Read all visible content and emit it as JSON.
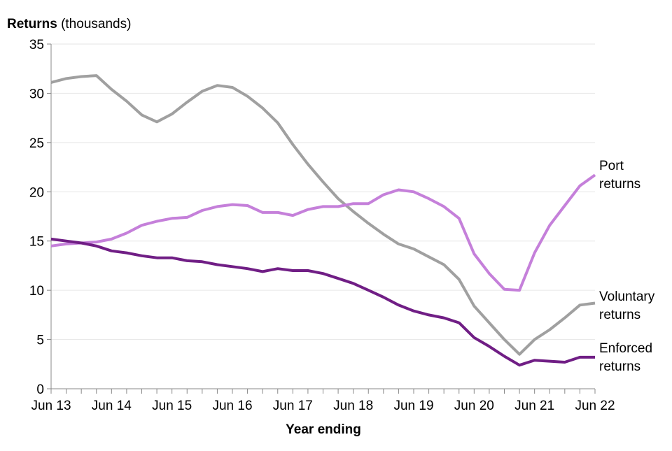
{
  "chart_data": {
    "type": "line",
    "title_bold": "Returns",
    "title_rest": " (thousands)",
    "xlabel": "Year ending",
    "ylabel": "Returns (thousands)",
    "ylim": [
      0,
      35
    ],
    "yticks": [
      0,
      5,
      10,
      15,
      20,
      25,
      30,
      35
    ],
    "xtick_labels": [
      "Jun 13",
      "Jun 14",
      "Jun 15",
      "Jun 16",
      "Jun 17",
      "Jun 18",
      "Jun 19",
      "Jun 20",
      "Jun 21",
      "Jun 22"
    ],
    "grid": true,
    "legend": "inline-right",
    "frequency": "quarterly",
    "series": [
      {
        "name": "Voluntary returns",
        "label_lines": [
          "Voluntary",
          "returns"
        ],
        "color": "#a0a0a0",
        "values": [
          31.1,
          31.5,
          31.7,
          31.8,
          30.4,
          29.2,
          27.8,
          27.1,
          27.9,
          29.1,
          30.2,
          30.8,
          30.6,
          29.7,
          28.5,
          27.0,
          24.8,
          22.8,
          21.0,
          19.3,
          18.0,
          16.8,
          15.7,
          14.7,
          14.2,
          13.4,
          12.6,
          11.1,
          8.4,
          6.7,
          5.0,
          3.5,
          5.0,
          6.0,
          7.2,
          8.5,
          8.7
        ]
      },
      {
        "name": "Port returns",
        "label_lines": [
          "Port",
          "returns"
        ],
        "color": "#c580da",
        "values": [
          14.5,
          14.7,
          14.8,
          14.9,
          15.2,
          15.8,
          16.6,
          17.0,
          17.3,
          17.4,
          18.1,
          18.5,
          18.7,
          18.6,
          17.9,
          17.9,
          17.6,
          18.2,
          18.5,
          18.5,
          18.8,
          18.8,
          19.7,
          20.2,
          20.0,
          19.3,
          18.5,
          17.3,
          13.7,
          11.7,
          10.1,
          10.0,
          13.8,
          16.6,
          18.6,
          20.6,
          21.7
        ]
      },
      {
        "name": "Enforced returns",
        "label_lines": [
          "Enforced",
          "returns"
        ],
        "color": "#701e85",
        "values": [
          15.2,
          15.0,
          14.8,
          14.5,
          14.0,
          13.8,
          13.5,
          13.3,
          13.3,
          13.0,
          12.9,
          12.6,
          12.4,
          12.2,
          11.9,
          12.2,
          12.0,
          12.0,
          11.7,
          11.2,
          10.7,
          10.0,
          9.3,
          8.5,
          7.9,
          7.5,
          7.2,
          6.7,
          5.2,
          4.3,
          3.3,
          2.4,
          2.9,
          2.8,
          2.7,
          3.2,
          3.2
        ]
      }
    ]
  }
}
